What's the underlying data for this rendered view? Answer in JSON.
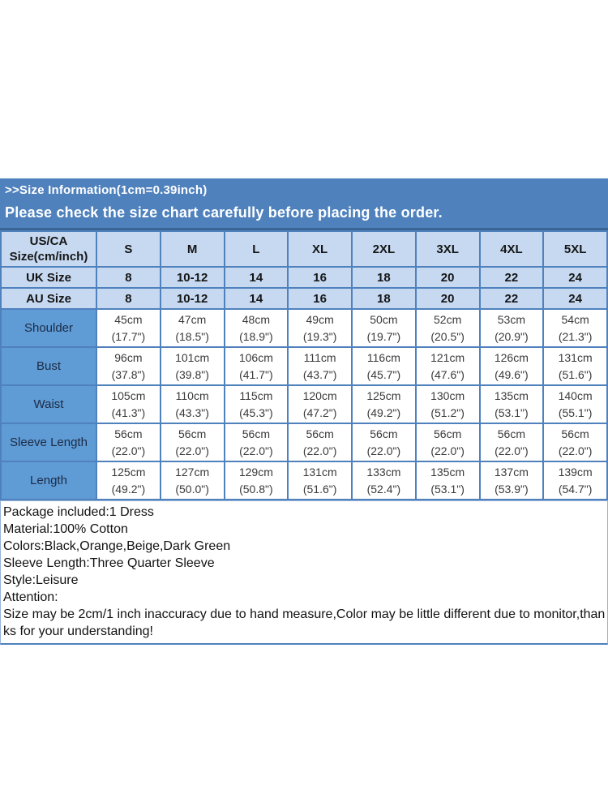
{
  "banner": {
    "title": ">>Size Information(1cm=0.39inch)",
    "subtitle": "Please check the size chart carefully before placing the order."
  },
  "table": {
    "corner_label": "US/CA\nSize(cm/inch)",
    "size_headers": [
      "S",
      "M",
      "L",
      "XL",
      "2XL",
      "3XL",
      "4XL",
      "5XL"
    ],
    "uk_row": {
      "label": "UK Size",
      "values": [
        "8",
        "10-12",
        "14",
        "16",
        "18",
        "20",
        "22",
        "24"
      ]
    },
    "au_row": {
      "label": "AU Size",
      "values": [
        "8",
        "10-12",
        "14",
        "16",
        "18",
        "20",
        "22",
        "24"
      ]
    },
    "measurement_rows": [
      {
        "label": "Shoulder",
        "values": [
          "45cm\n(17.7\")",
          "47cm\n(18.5\")",
          "48cm\n(18.9\")",
          "49cm\n(19.3\")",
          "50cm\n(19.7\")",
          "52cm\n(20.5\")",
          "53cm\n(20.9\")",
          "54cm\n(21.3\")"
        ]
      },
      {
        "label": "Bust",
        "values": [
          "96cm\n(37.8\")",
          "101cm\n(39.8\")",
          "106cm\n(41.7\")",
          "111cm\n(43.7\")",
          "116cm\n(45.7\")",
          "121cm\n(47.6\")",
          "126cm\n(49.6\")",
          "131cm\n(51.6\")"
        ]
      },
      {
        "label": "Waist",
        "values": [
          "105cm\n(41.3\")",
          "110cm\n(43.3\")",
          "115cm\n(45.3\")",
          "120cm\n(47.2\")",
          "125cm\n(49.2\")",
          "130cm\n(51.2\")",
          "135cm\n(53.1\")",
          "140cm\n(55.1\")"
        ]
      },
      {
        "label": "Sleeve Length",
        "values": [
          "56cm\n(22.0\")",
          "56cm\n(22.0\")",
          "56cm\n(22.0\")",
          "56cm\n(22.0\")",
          "56cm\n(22.0\")",
          "56cm\n(22.0\")",
          "56cm\n(22.0\")",
          "56cm\n(22.0\")"
        ]
      },
      {
        "label": "Length",
        "values": [
          "125cm\n(49.2\")",
          "127cm\n(50.0\")",
          "129cm\n(50.8\")",
          "131cm\n(51.6\")",
          "133cm\n(52.4\")",
          "135cm\n(53.1\")",
          "137cm\n(53.9\")",
          "139cm\n(54.7\")"
        ]
      }
    ]
  },
  "details": {
    "lines": [
      "Package included:1 Dress",
      "Material:100% Cotton",
      "Colors:Black,Orange,Beige,Dark Green",
      "Sleeve Length:Three Quarter Sleeve",
      "Style:Leisure",
      "Attention:"
    ],
    "attention": "Size may be 2cm/1 inch inaccuracy due to hand measure,Color may be little different due to monitor,thanks for your understanding!"
  },
  "colors": {
    "banner_bg": "#4f81bd",
    "banner_text": "#ffffff",
    "header_cell_bg": "#c6d9f1",
    "label_cell_bg": "#5f9bd5",
    "table_border": "#4f81bd",
    "details_border": "#95b3d7"
  }
}
